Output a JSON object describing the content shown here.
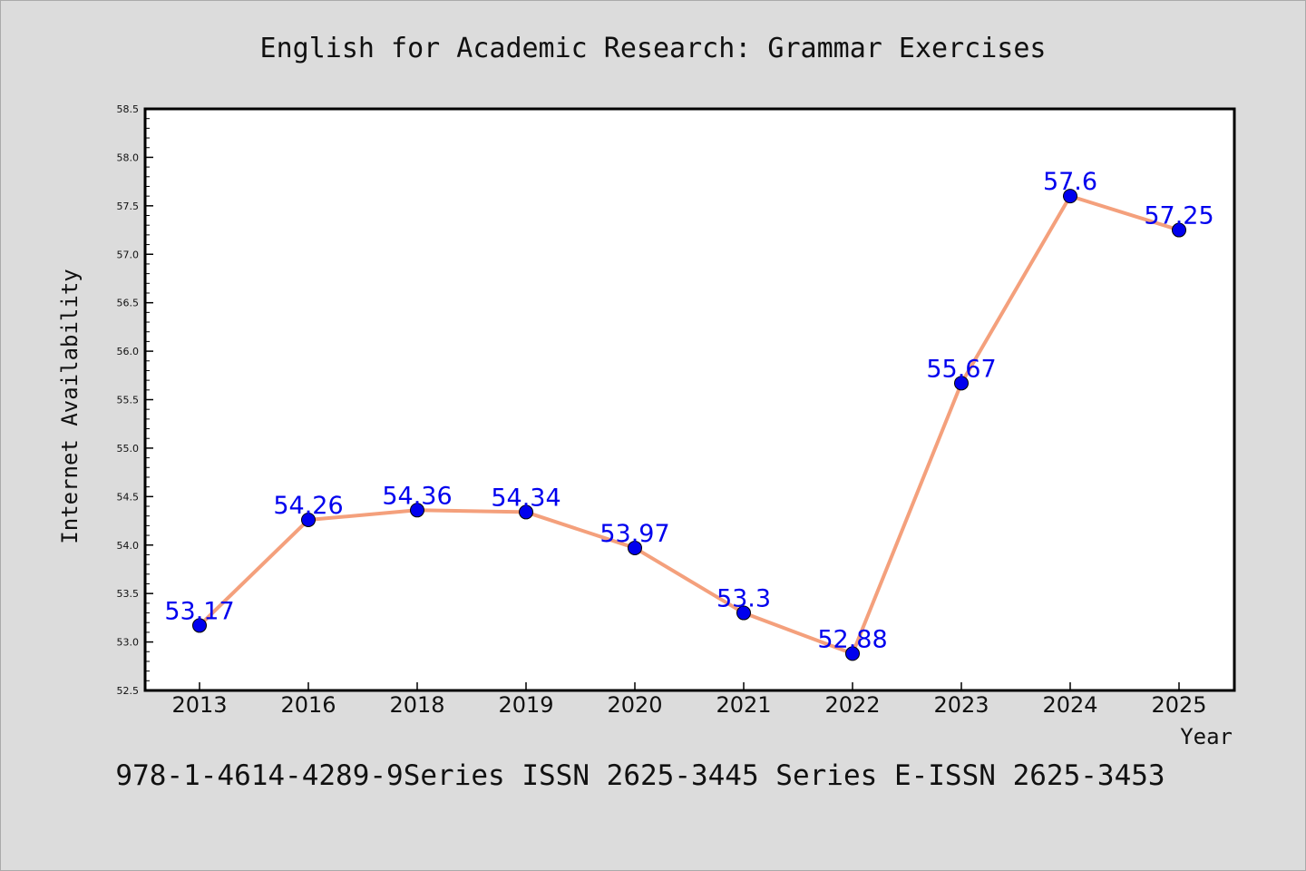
{
  "chart_data": {
    "type": "line",
    "title": "English for Academic Research: Grammar Exercises",
    "xlabel": "Year",
    "ylabel": "Internet Availability",
    "caption": "978-1-4614-4289-9Series ISSN 2625-3445 Series E-ISSN 2625-3453",
    "categories": [
      "2013",
      "2016",
      "2018",
      "2019",
      "2020",
      "2021",
      "2022",
      "2023",
      "2024",
      "2025"
    ],
    "series": [
      {
        "values": [
          53.17,
          54.26,
          54.36,
          54.34,
          53.97,
          53.3,
          52.88,
          55.67,
          57.6,
          57.25
        ],
        "labels": [
          "53.17",
          "54.26",
          "54.36",
          "54.34",
          "53.97",
          "53.3",
          "52.88",
          "55.67",
          "57.6",
          "57.25"
        ],
        "line_color": "#f4a07c",
        "marker_color": "#0000ee",
        "label_color": "#0000ee"
      }
    ],
    "ylim": [
      52.5,
      58.5
    ],
    "yticks": [
      "52.5",
      "53.0",
      "53.5",
      "54.0",
      "54.5",
      "55.0",
      "55.5",
      "56.0",
      "56.5",
      "57.0",
      "57.5",
      "58.0",
      "58.5"
    ],
    "grid": false,
    "legend": "none"
  }
}
